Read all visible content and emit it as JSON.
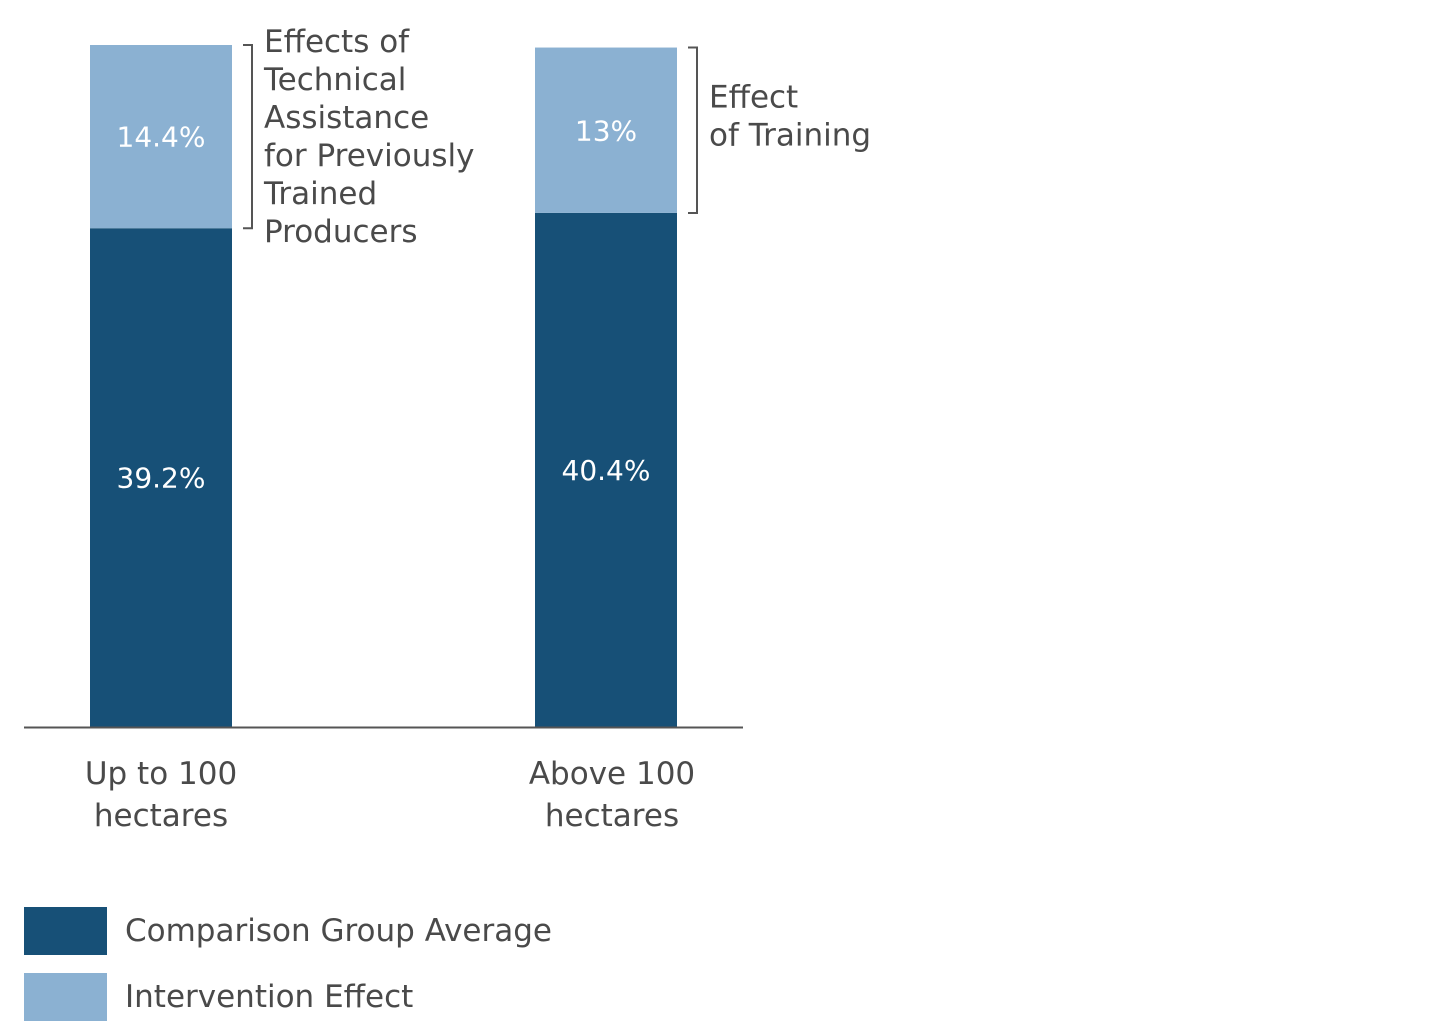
{
  "chart_data": {
    "type": "bar",
    "stacked": true,
    "categories": [
      "Up to 100 hectares",
      "Above 100 hectares"
    ],
    "category_lines": [
      [
        "Up to 100",
        "hectares"
      ],
      [
        "Above 100",
        "hectares"
      ]
    ],
    "series": [
      {
        "name": "Comparison Group Average",
        "values": [
          39.2,
          40.4
        ],
        "labels": [
          "39.2%",
          "40.4%"
        ],
        "color": "#175077"
      },
      {
        "name": "Intervention Effect",
        "values": [
          14.4,
          13
        ],
        "labels": [
          "14.4%",
          "13%"
        ],
        "color": "#8bb1d2"
      }
    ],
    "annotations": [
      {
        "category": "Up to 100 hectares",
        "lines": [
          "Effects of",
          "Technical",
          "Assistance",
          "for Previously",
          "Trained",
          "Producers"
        ]
      },
      {
        "category": "Above 100 hectares",
        "lines": [
          "Effect",
          "of Training"
        ]
      }
    ],
    "legend": {
      "placement": "bottom-left"
    },
    "grid": false,
    "ylim": [
      0,
      53.6
    ]
  }
}
